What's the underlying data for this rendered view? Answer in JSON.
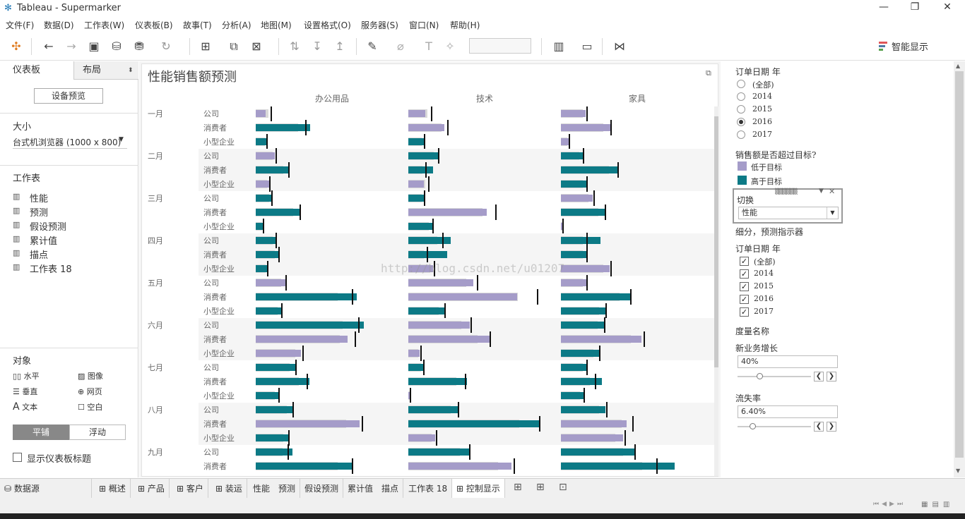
{
  "window": {
    "title": "Tableau - Supermarker",
    "minimize": "—",
    "restore": "❐",
    "close": "✕"
  },
  "menu": [
    "文件(F)",
    "数据(D)",
    "工作表(W)",
    "仪表板(B)",
    "故事(T)",
    "分析(A)",
    "地图(M)",
    "设置格式(O)",
    "服务器(S)",
    "窗口(N)",
    "帮助(H)"
  ],
  "toolbar": {
    "smart_show": "智能显示"
  },
  "left_panel": {
    "tab_dashboard": "仪表板",
    "tab_layout": "布局",
    "device_preview": "设备预览",
    "size_heading": "大小",
    "size_value": "台式机浏览器 (1000 x 800)",
    "sheets_heading": "工作表",
    "sheets": [
      "性能",
      "预测",
      "假设预测",
      "累计值",
      "描点",
      "工作表 18"
    ],
    "objects_heading": "对象",
    "objects": [
      "水平",
      "图像",
      "垂直",
      "网页",
      "文本",
      "空白"
    ],
    "tiled": "平铺",
    "floating": "浮动",
    "show_title": "显示仪表板标题"
  },
  "dashboard": {
    "title": "性能销售额预测",
    "watermark": "http://blog.csdn.net/u01207"
  },
  "chart_data": {
    "type": "bar",
    "columns": [
      "办公用品",
      "技术",
      "家具"
    ],
    "months": [
      "一月",
      "二月",
      "三月",
      "四月",
      "五月",
      "六月",
      "七月",
      "八月",
      "九月"
    ],
    "segments": [
      "公司",
      "消费者",
      "小型企业"
    ],
    "series_legend": [
      "低于目标",
      "高于目标"
    ],
    "rows": [
      {
        "month": "一月",
        "segment": "公司",
        "cells": [
          [
            14,
            0,
            21,
            0
          ],
          [
            24,
            0,
            32,
            0
          ],
          [
            35,
            0,
            36,
            0
          ]
        ]
      },
      {
        "month": "一月",
        "segment": "消费者",
        "cells": [
          [
            77,
            1,
            70,
            1
          ],
          [
            51,
            0,
            55,
            0
          ],
          [
            70,
            0,
            70,
            0
          ]
        ]
      },
      {
        "month": "一月",
        "segment": "小型企业",
        "cells": [
          [
            15,
            1,
            15,
            1
          ],
          [
            22,
            1,
            22,
            1
          ],
          [
            11,
            0,
            11,
            0
          ]
        ]
      },
      {
        "month": "二月",
        "segment": "公司",
        "cells": [
          [
            27,
            0,
            28,
            0
          ],
          [
            42,
            1,
            42,
            1
          ],
          [
            31,
            1,
            31,
            1
          ]
        ]
      },
      {
        "month": "二月",
        "segment": "消费者",
        "cells": [
          [
            47,
            1,
            46,
            1
          ],
          [
            35,
            1,
            24,
            1
          ],
          [
            80,
            1,
            80,
            1
          ]
        ]
      },
      {
        "month": "二月",
        "segment": "小型企业",
        "cells": [
          [
            19,
            0,
            19,
            0
          ],
          [
            22,
            0,
            28,
            0
          ],
          [
            36,
            1,
            36,
            1
          ]
        ]
      },
      {
        "month": "三月",
        "segment": "公司",
        "cells": [
          [
            22,
            1,
            22,
            1
          ],
          [
            22,
            1,
            22,
            1
          ],
          [
            45,
            0,
            46,
            0
          ]
        ]
      },
      {
        "month": "三月",
        "segment": "消费者",
        "cells": [
          [
            64,
            1,
            62,
            1
          ],
          [
            111,
            0,
            123,
            0
          ],
          [
            62,
            1,
            62,
            1
          ]
        ]
      },
      {
        "month": "三月",
        "segment": "小型企业",
        "cells": [
          [
            10,
            1,
            10,
            1
          ],
          [
            34,
            1,
            34,
            1
          ],
          [
            2,
            0,
            2,
            0
          ]
        ]
      },
      {
        "month": "四月",
        "segment": "公司",
        "cells": [
          [
            28,
            1,
            28,
            1
          ],
          [
            60,
            1,
            48,
            1
          ],
          [
            56,
            1,
            36,
            1
          ]
        ]
      },
      {
        "month": "四月",
        "segment": "消费者",
        "cells": [
          [
            33,
            1,
            32,
            1
          ],
          [
            55,
            1,
            26,
            1
          ],
          [
            36,
            1,
            36,
            1
          ]
        ]
      },
      {
        "month": "四月",
        "segment": "小型企业",
        "cells": [
          [
            16,
            1,
            16,
            1
          ],
          [
            35,
            0,
            36,
            0
          ],
          [
            69,
            0,
            70,
            0
          ]
        ]
      },
      {
        "month": "五月",
        "segment": "公司",
        "cells": [
          [
            42,
            0,
            42,
            0
          ],
          [
            92,
            0,
            97,
            0
          ],
          [
            36,
            0,
            36,
            0
          ]
        ]
      },
      {
        "month": "五月",
        "segment": "消费者",
        "cells": [
          [
            143,
            1,
            136,
            1
          ],
          [
            154,
            0,
            182,
            0
          ],
          [
            98,
            1,
            98,
            1
          ]
        ]
      },
      {
        "month": "五月",
        "segment": "小型企业",
        "cells": [
          [
            36,
            1,
            36,
            1
          ],
          [
            51,
            1,
            51,
            1
          ],
          [
            63,
            1,
            63,
            1
          ]
        ]
      },
      {
        "month": "六月",
        "segment": "公司",
        "cells": [
          [
            153,
            1,
            145,
            1
          ],
          [
            87,
            0,
            88,
            0
          ],
          [
            61,
            1,
            61,
            1
          ]
        ]
      },
      {
        "month": "六月",
        "segment": "消费者",
        "cells": [
          [
            130,
            0,
            140,
            0
          ],
          [
            115,
            0,
            115,
            0
          ],
          [
            114,
            0,
            117,
            0
          ]
        ]
      },
      {
        "month": "六月",
        "segment": "小型企业",
        "cells": [
          [
            64,
            0,
            66,
            0
          ],
          [
            16,
            0,
            17,
            0
          ],
          [
            54,
            1,
            54,
            1
          ]
        ]
      },
      {
        "month": "七月",
        "segment": "公司",
        "cells": [
          [
            57,
            1,
            56,
            1
          ],
          [
            21,
            1,
            21,
            1
          ],
          [
            36,
            1,
            36,
            1
          ]
        ]
      },
      {
        "month": "七月",
        "segment": "消费者",
        "cells": [
          [
            76,
            1,
            72,
            1
          ],
          [
            83,
            1,
            80,
            1
          ],
          [
            58,
            1,
            48,
            1
          ]
        ]
      },
      {
        "month": "七月",
        "segment": "小型企业",
        "cells": [
          [
            32,
            1,
            32,
            1
          ],
          [
            2,
            0,
            2,
            0
          ],
          [
            32,
            1,
            32,
            1
          ]
        ]
      },
      {
        "month": "八月",
        "segment": "公司",
        "cells": [
          [
            53,
            1,
            52,
            1
          ],
          [
            70,
            1,
            70,
            1
          ],
          [
            63,
            1,
            64,
            1
          ]
        ]
      },
      {
        "month": "八月",
        "segment": "消费者",
        "cells": [
          [
            147,
            0,
            150,
            0
          ],
          [
            187,
            1,
            185,
            1
          ],
          [
            93,
            0,
            101,
            0
          ]
        ]
      },
      {
        "month": "八月",
        "segment": "小型企业",
        "cells": [
          [
            47,
            1,
            46,
            1
          ],
          [
            38,
            0,
            39,
            0
          ],
          [
            88,
            0,
            90,
            0
          ]
        ]
      },
      {
        "month": "九月",
        "segment": "公司",
        "cells": [
          [
            52,
            1,
            45,
            1
          ],
          [
            86,
            1,
            86,
            1
          ],
          [
            104,
            1,
            104,
            1
          ]
        ]
      },
      {
        "month": "九月",
        "segment": "消费者",
        "cells": [
          [
            138,
            1,
            136,
            1
          ],
          [
            146,
            0,
            149,
            0
          ],
          [
            161,
            1,
            135,
            1
          ]
        ]
      }
    ],
    "scale_max": 200
  },
  "right_panel": {
    "order_year_heading": "订单日期 年",
    "radio_options": [
      "(全部)",
      "2014",
      "2015",
      "2016",
      "2017"
    ],
    "radio_selected": 3,
    "legend_heading": "销售额是否超过目标?",
    "legend_low": "低于目标",
    "legend_high": "高于目标",
    "color_low": "#a59cc9",
    "color_high": "#0c7a86",
    "switch_heading": "切换",
    "switch_value": "性能",
    "breakdown_heading": "细分，预测指示器",
    "order_year_heading2": "订单日期 年",
    "check_options": [
      "(全部)",
      "2014",
      "2015",
      "2016",
      "2017"
    ],
    "measure_names": "度量名称",
    "new_business_heading": "新业务增长",
    "new_business_value": "40%",
    "new_business_level": 0.3,
    "churn_heading": "流失率",
    "churn_value": "6.40%",
    "churn_level": 0.2
  },
  "bottom_tabs": [
    "数据源",
    "概述",
    "产品",
    "客户",
    "装运",
    "性能",
    "预测",
    "假设预测",
    "累计值",
    "描点",
    "工作表 18",
    "控制显示"
  ],
  "active_tab": "控制显示"
}
